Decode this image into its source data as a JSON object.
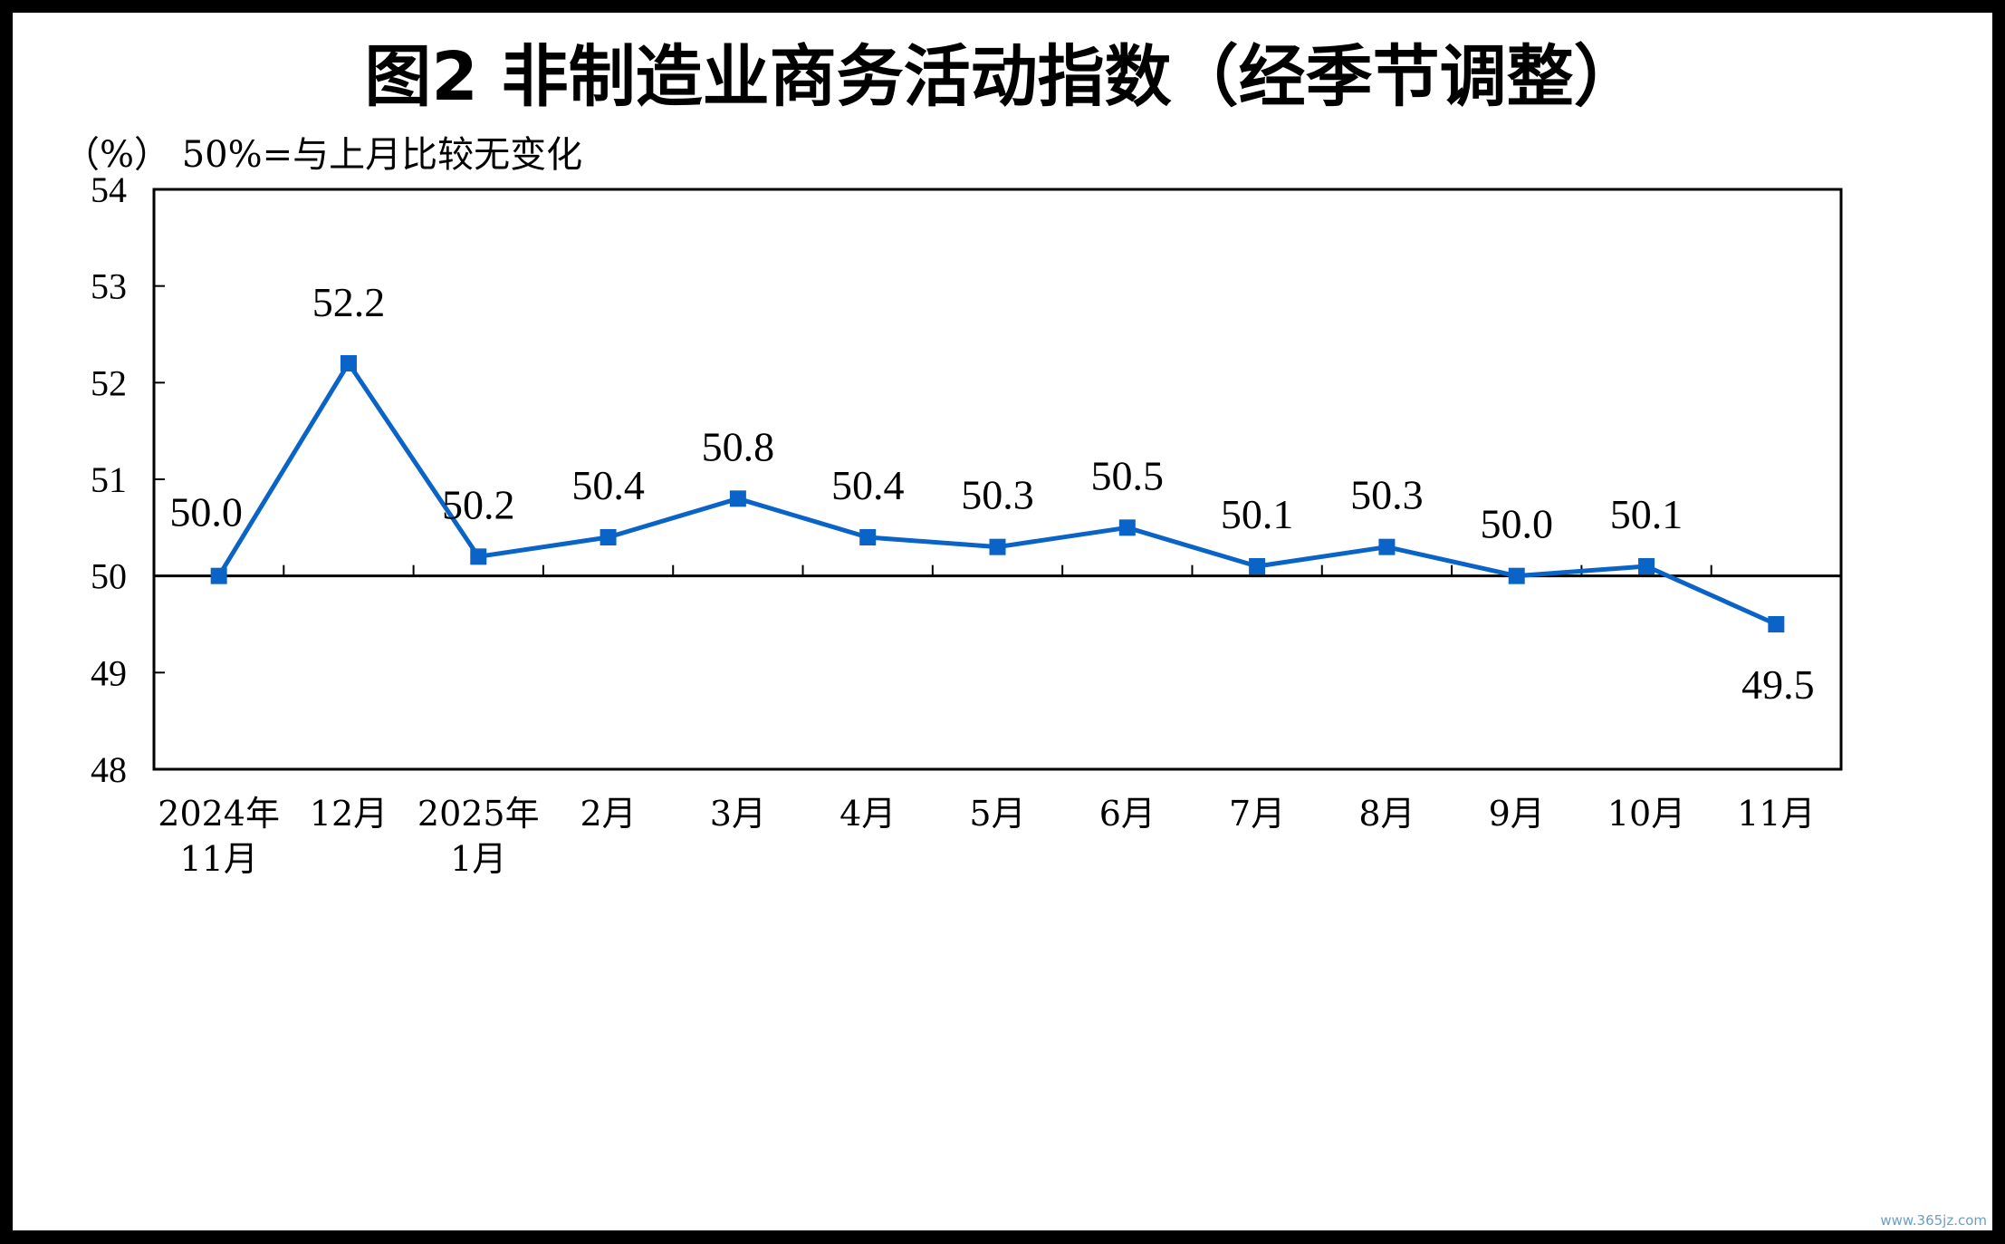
{
  "chart_data": {
    "type": "line",
    "title": "图2  非制造业商务活动指数（经季节调整）",
    "note": "（%）  50%=与上月比较无变化",
    "ylim": [
      48,
      54
    ],
    "yticks": [
      "48",
      "49",
      "50",
      "51",
      "52",
      "53",
      "54"
    ],
    "reference_line": 50,
    "categories": [
      [
        "2024年",
        "11月"
      ],
      [
        "12月"
      ],
      [
        "2025年",
        "1月"
      ],
      [
        "2月"
      ],
      [
        "3月"
      ],
      [
        "4月"
      ],
      [
        "5月"
      ],
      [
        "6月"
      ],
      [
        "7月"
      ],
      [
        "8月"
      ],
      [
        "9月"
      ],
      [
        "10月"
      ],
      [
        "11月"
      ]
    ],
    "series": [
      {
        "values": [
          50.0,
          52.2,
          50.2,
          50.4,
          50.8,
          50.4,
          50.3,
          50.5,
          50.1,
          50.3,
          50.0,
          50.1,
          49.5
        ],
        "labels": [
          "50.0",
          "52.2",
          "50.2",
          "50.4",
          "50.8",
          "50.4",
          "50.3",
          "50.5",
          "50.1",
          "50.3",
          "50.0",
          "50.1",
          "49.5"
        ]
      }
    ],
    "line_color": "#0a64c8",
    "grid": false,
    "legend": "none"
  },
  "watermark": "www.365jz.com"
}
